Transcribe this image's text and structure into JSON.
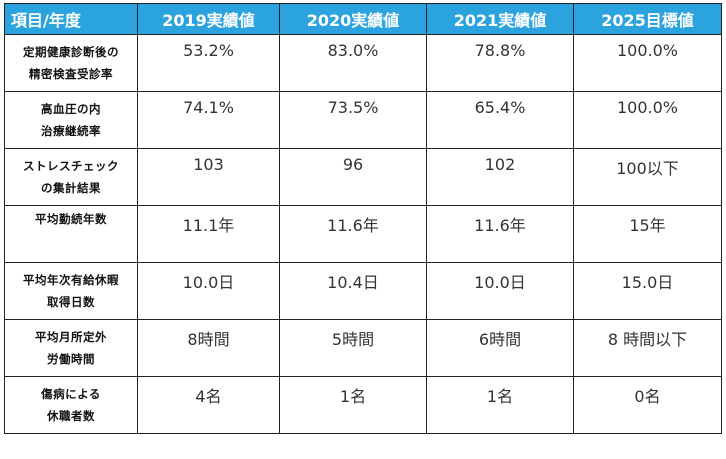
{
  "table": {
    "headers": [
      "項目/年度",
      "2019実績値",
      "2020実績値",
      "2021実績値",
      "2025目標値"
    ],
    "rows": [
      {
        "label": [
          "定期健康診断後の",
          "精密検査受診率"
        ],
        "values": [
          "53.2%",
          "83.0%",
          "78.8%",
          "100.0%"
        ]
      },
      {
        "label": [
          "高血圧の内",
          "治療継続率"
        ],
        "values": [
          "74.1%",
          "73.5%",
          "65.4%",
          "100.0%"
        ]
      },
      {
        "label": [
          "ストレスチェック",
          "の集計結果"
        ],
        "values": [
          "103",
          "96",
          "102",
          "100以下"
        ]
      },
      {
        "label": [
          "平均勤続年数"
        ],
        "values": [
          "11.1年",
          "11.6年",
          "11.6年",
          "15年"
        ]
      },
      {
        "label": [
          "平均年次有給休暇",
          "取得日数"
        ],
        "values": [
          "10.0日",
          "10.4日",
          "10.0日",
          "15.0日"
        ]
      },
      {
        "label": [
          "平均月所定外",
          "労働時間"
        ],
        "values": [
          "8時間",
          "5時間",
          "6時間",
          "8 時間以下"
        ]
      },
      {
        "label": [
          "傷病による",
          "休職者数"
        ],
        "values": [
          "4名",
          "1名",
          "1名",
          "0名"
        ]
      }
    ]
  },
  "colors": {
    "header_bg": "#2aa3df",
    "header_text": "#ffffff",
    "border": "#222222"
  }
}
